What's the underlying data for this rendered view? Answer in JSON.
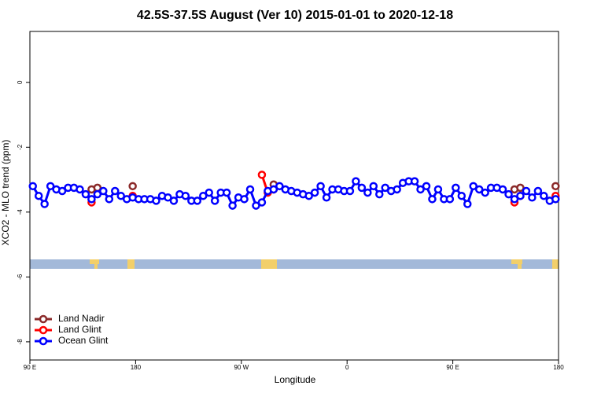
{
  "chart_data": {
    "type": "line",
    "title": "42.5S-37.5S August (Ver 10)   2015-01-01 to 2020-12-18",
    "xlabel": "Longitude",
    "ylabel": "XCO2 - MLO trend (ppm)",
    "xlim": [
      90,
      540
    ],
    "ylim": [
      -8.56,
      1.57
    ],
    "xticks": [
      {
        "value": 90,
        "label": "90 E"
      },
      {
        "value": 180,
        "label": "180"
      },
      {
        "value": 270,
        "label": "90 W"
      },
      {
        "value": 360,
        "label": "0"
      },
      {
        "value": 450,
        "label": "90 E"
      },
      {
        "value": 540,
        "label": "180"
      }
    ],
    "yticks": [
      0,
      -2,
      -4,
      -6,
      -8
    ],
    "legend": "bottom-left",
    "series": [
      {
        "name": "Land Nadir",
        "color": "#8b2a2a",
        "x": [
          142.5,
          147.5,
          177.5,
          297.5,
          502.5,
          507.5,
          537.5
        ],
        "values": [
          -3.3,
          -3.25,
          -3.2,
          -3.15,
          -3.3,
          -3.25,
          -3.2
        ]
      },
      {
        "name": "Land Glint",
        "color": "#ff0000",
        "x": [
          142.5,
          177.5,
          287.5,
          292.5,
          297.5,
          502.5,
          507.5,
          537.5
        ],
        "values": [
          -3.7,
          -3.5,
          -2.85,
          -3.4,
          -3.3,
          -3.7,
          -3.5,
          -3.5
        ]
      },
      {
        "name": "Ocean Glint",
        "color": "#0000ff",
        "x": [
          92.5,
          97.5,
          102.5,
          107.5,
          112.5,
          117.5,
          122.5,
          127.5,
          132.5,
          137.5,
          142.5,
          147.5,
          152.5,
          157.5,
          162.5,
          167.5,
          172.5,
          177.5,
          182.5,
          187.5,
          192.5,
          197.5,
          202.5,
          207.5,
          212.5,
          217.5,
          222.5,
          227.5,
          232.5,
          237.5,
          242.5,
          247.5,
          252.5,
          257.5,
          262.5,
          267.5,
          272.5,
          277.5,
          282.5,
          287.5,
          292.5,
          297.5,
          302.5,
          307.5,
          312.5,
          317.5,
          322.5,
          327.5,
          332.5,
          337.5,
          342.5,
          347.5,
          352.5,
          357.5,
          362.5,
          367.5,
          372.5,
          377.5,
          382.5,
          387.5,
          392.5,
          397.5,
          402.5,
          407.5,
          412.5,
          417.5,
          422.5,
          427.5,
          432.5,
          437.5,
          442.5,
          447.5,
          452.5,
          457.5,
          462.5,
          467.5,
          472.5,
          477.5,
          482.5,
          487.5,
          492.5,
          497.5,
          502.5,
          507.5,
          512.5,
          517.5,
          522.5,
          527.5,
          532.5,
          537.5
        ],
        "values": [
          -3.2,
          -3.5,
          -3.75,
          -3.2,
          -3.3,
          -3.35,
          -3.25,
          -3.25,
          -3.3,
          -3.45,
          -3.6,
          -3.45,
          -3.35,
          -3.6,
          -3.35,
          -3.5,
          -3.6,
          -3.55,
          -3.6,
          -3.6,
          -3.6,
          -3.65,
          -3.5,
          -3.55,
          -3.65,
          -3.45,
          -3.5,
          -3.65,
          -3.65,
          -3.5,
          -3.4,
          -3.65,
          -3.4,
          -3.4,
          -3.8,
          -3.55,
          -3.6,
          -3.3,
          -3.8,
          -3.7,
          -3.35,
          -3.3,
          -3.2,
          -3.3,
          -3.35,
          -3.4,
          -3.45,
          -3.5,
          -3.4,
          -3.2,
          -3.55,
          -3.3,
          -3.3,
          -3.35,
          -3.35,
          -3.05,
          -3.25,
          -3.4,
          -3.2,
          -3.45,
          -3.25,
          -3.35,
          -3.3,
          -3.1,
          -3.05,
          -3.05,
          -3.3,
          -3.2,
          -3.6,
          -3.3,
          -3.6,
          -3.6,
          -3.25,
          -3.5,
          -3.75,
          -3.2,
          -3.3,
          -3.4,
          -3.25,
          -3.25,
          -3.3,
          -3.45,
          -3.6,
          -3.5,
          -3.35,
          -3.55,
          -3.35,
          -3.5,
          -3.65,
          -3.6
        ]
      }
    ]
  }
}
